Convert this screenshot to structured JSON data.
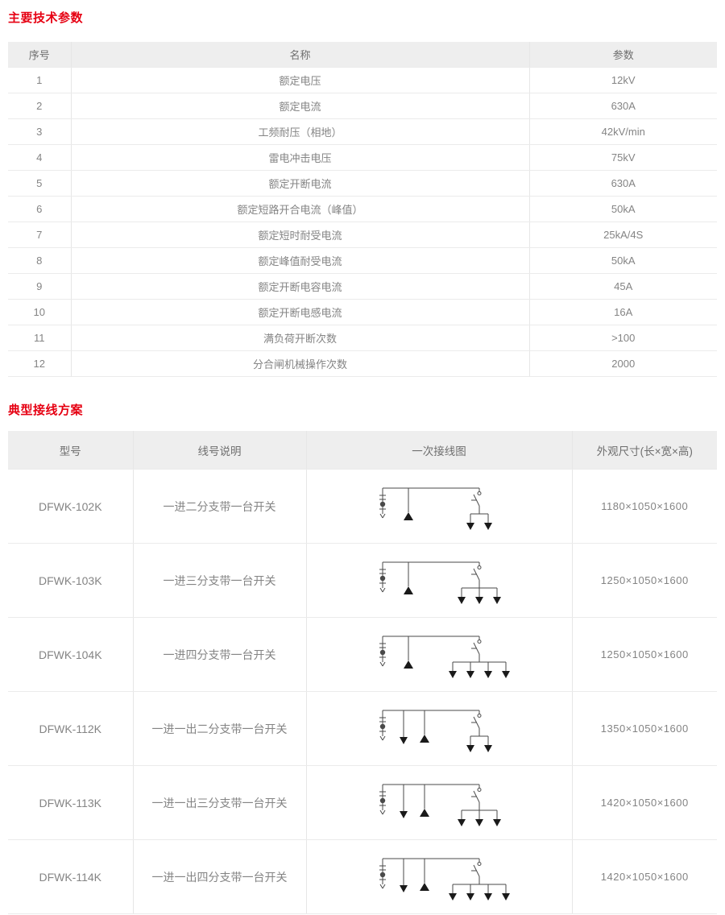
{
  "colors": {
    "accent": "#e60012",
    "header_bg": "#eeeeee",
    "header_text": "#6e6e6e",
    "cell_text": "#848484",
    "border": "#ebebeb",
    "diagram_stroke": "#4a4a4a",
    "diagram_fill": "#1a1a1a"
  },
  "section_params": {
    "title": "主要技术参数",
    "headers": [
      "序号",
      "名称",
      "参数"
    ],
    "rows": [
      [
        "1",
        "额定电压",
        "12kV"
      ],
      [
        "2",
        "额定电流",
        "630A"
      ],
      [
        "3",
        "工频耐压（相地）",
        "42kV/min"
      ],
      [
        "4",
        "雷电冲击电压",
        "75kV"
      ],
      [
        "5",
        "额定开断电流",
        "630A"
      ],
      [
        "6",
        "额定短路开合电流（峰值）",
        "50kA"
      ],
      [
        "7",
        "额定短时耐受电流",
        "25kA/4S"
      ],
      [
        "8",
        "额定峰值耐受电流",
        "50kA"
      ],
      [
        "9",
        "额定开断电容电流",
        "45A"
      ],
      [
        "10",
        "额定开断电感电流",
        "16A"
      ],
      [
        "11",
        "满负荷开断次数",
        ">100"
      ],
      [
        "12",
        "分合闸机械操作次数",
        "2000"
      ]
    ]
  },
  "section_schemes": {
    "title": "典型接线方案",
    "headers": [
      "型号",
      "线号说明",
      "一次接线图",
      "外观尺寸(长×宽×高)"
    ],
    "rows": [
      {
        "model": "DFWK-102K",
        "desc": "一进二分支带一台开关",
        "diagram": {
          "incoming": 1,
          "outgoing": 0,
          "switch_branches": 2
        },
        "dims": "1180×1050×1600"
      },
      {
        "model": "DFWK-103K",
        "desc": "一进三分支带一台开关",
        "diagram": {
          "incoming": 1,
          "outgoing": 0,
          "switch_branches": 3
        },
        "dims": "1250×1050×1600"
      },
      {
        "model": "DFWK-104K",
        "desc": "一进四分支带一台开关",
        "diagram": {
          "incoming": 1,
          "outgoing": 0,
          "switch_branches": 4
        },
        "dims": "1250×1050×1600"
      },
      {
        "model": "DFWK-112K",
        "desc": "一进一出二分支带一台开关",
        "diagram": {
          "incoming": 1,
          "outgoing": 1,
          "switch_branches": 2
        },
        "dims": "1350×1050×1600"
      },
      {
        "model": "DFWK-113K",
        "desc": "一进一出三分支带一台开关",
        "diagram": {
          "incoming": 1,
          "outgoing": 1,
          "switch_branches": 3
        },
        "dims": "1420×1050×1600"
      },
      {
        "model": "DFWK-114K",
        "desc": "一进一出四分支带一台开关",
        "diagram": {
          "incoming": 1,
          "outgoing": 1,
          "switch_branches": 4
        },
        "dims": "1420×1050×1600"
      }
    ]
  }
}
